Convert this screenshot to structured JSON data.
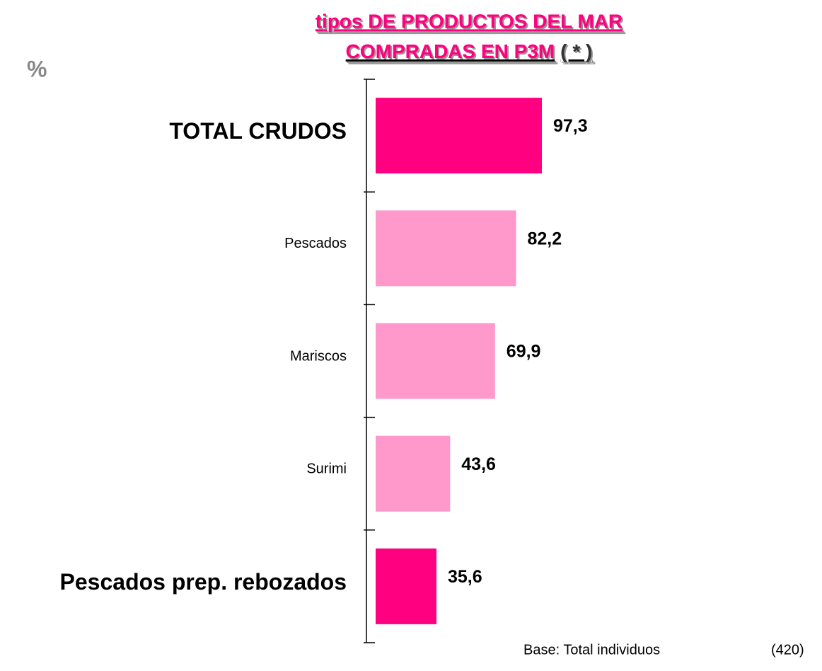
{
  "chart_data": {
    "type": "barh",
    "title": [
      "tipos DE PRODUCTOS DEL MAR",
      "COMPRADAS EN P3M"
    ],
    "title_note": "( * )",
    "unit_label": "%",
    "categories": [
      "TOTAL CRUDOS",
      "Pescados",
      "Mariscos",
      "Surimi",
      "Pescados prep. rebozados"
    ],
    "values": [
      97.3,
      82.2,
      69.9,
      43.6,
      35.6
    ],
    "value_labels": [
      "97,3",
      "82,2",
      "69,9",
      "43,6",
      "35,6"
    ],
    "colors": [
      "#ff0080",
      "#ff99cc",
      "#ff99cc",
      "#ff99cc",
      "#ff0080"
    ],
    "label_bold": [
      true,
      false,
      false,
      false,
      true
    ],
    "xlim": [
      0,
      100
    ],
    "footnote": "Base: Total individuos",
    "footnote_n": "(420)"
  }
}
